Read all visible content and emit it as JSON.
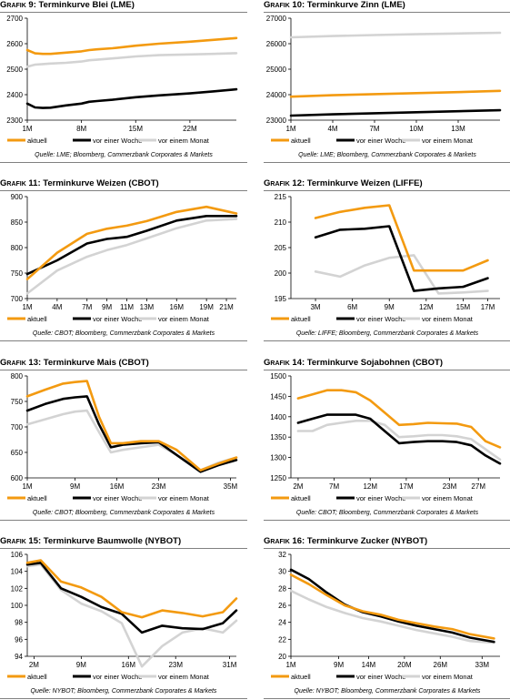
{
  "colors": {
    "aktuell": "#f39a10",
    "woche": "#000000",
    "monat": "#d3d3d3"
  },
  "legend": [
    "aktuell",
    "vor einer Woche",
    "vor einem Monat"
  ],
  "chart_data": [
    {
      "type": "line",
      "title_prefix": "Grafik 9:",
      "title": "Terminkurve Blei (LME)",
      "source": "Quelle: LME; Bloomberg, Commerzbank Corporates & Markets",
      "ylim": [
        2300,
        2700
      ],
      "yticks": [
        2300,
        2400,
        2500,
        2600,
        2700
      ],
      "xlim": [
        1,
        28
      ],
      "xticks": [
        1,
        8,
        15,
        22
      ],
      "xticklabels": [
        "1M",
        "8M",
        "15M",
        "22M"
      ],
      "series": [
        {
          "name": "aktuell",
          "x": [
            1,
            2,
            3,
            4,
            6,
            8,
            9,
            10,
            12,
            15,
            18,
            22,
            25,
            28
          ],
          "values": [
            2575,
            2562,
            2560,
            2560,
            2565,
            2570,
            2575,
            2578,
            2582,
            2592,
            2600,
            2608,
            2615,
            2622
          ]
        },
        {
          "name": "vor einer Woche",
          "x": [
            1,
            2,
            3,
            4,
            6,
            8,
            9,
            10,
            12,
            15,
            18,
            22,
            25,
            28
          ],
          "values": [
            2365,
            2350,
            2348,
            2349,
            2358,
            2365,
            2372,
            2375,
            2380,
            2390,
            2397,
            2405,
            2413,
            2421
          ]
        },
        {
          "name": "vor einem Monat",
          "x": [
            1,
            2,
            3,
            4,
            6,
            8,
            9,
            10,
            12,
            15,
            18,
            22,
            25,
            28
          ],
          "values": [
            2510,
            2518,
            2520,
            2522,
            2525,
            2530,
            2535,
            2537,
            2542,
            2550,
            2555,
            2558,
            2560,
            2563
          ]
        }
      ]
    },
    {
      "type": "line",
      "title_prefix": "Grafik 10:",
      "title": "Terminkurve Zinn (LME)",
      "source": "Quelle: LME; Bloomberg, Commerzbank Corporates & Markets",
      "ylim": [
        23000,
        27000
      ],
      "yticks": [
        23000,
        24000,
        25000,
        26000,
        27000
      ],
      "xlim": [
        1,
        16
      ],
      "xticks": [
        1,
        4,
        7,
        10,
        13
      ],
      "xticklabels": [
        "1M",
        "4M",
        "7M",
        "10M",
        "13M"
      ],
      "series": [
        {
          "name": "aktuell",
          "x": [
            1,
            4,
            7,
            10,
            13,
            16
          ],
          "values": [
            23920,
            23980,
            24020,
            24060,
            24100,
            24150
          ]
        },
        {
          "name": "vor einer Woche",
          "x": [
            1,
            4,
            7,
            10,
            13,
            16
          ],
          "values": [
            23180,
            23230,
            23270,
            23310,
            23350,
            23390
          ]
        },
        {
          "name": "vor einem Monat",
          "x": [
            1,
            4,
            7,
            10,
            13,
            16
          ],
          "values": [
            26250,
            26300,
            26340,
            26370,
            26400,
            26430
          ]
        }
      ]
    },
    {
      "type": "line",
      "title_prefix": "Grafik 11:",
      "title": "Terminkurve Weizen (CBOT)",
      "source": "Quelle: CBOT; Bloomberg, Commerzbank Corporates & Markets",
      "ylim": [
        700,
        900
      ],
      "yticks": [
        700,
        750,
        800,
        850,
        900
      ],
      "xlim": [
        1,
        22
      ],
      "xticks": [
        1,
        4,
        7,
        9,
        11,
        13,
        16,
        19,
        21
      ],
      "xticklabels": [
        "1M",
        "4M",
        "7M",
        "9M",
        "11M",
        "13M",
        "16M",
        "19M",
        "21M"
      ],
      "series": [
        {
          "name": "aktuell",
          "x": [
            1,
            4,
            7,
            9,
            11,
            13,
            16,
            19,
            22
          ],
          "values": [
            738,
            790,
            827,
            837,
            843,
            852,
            870,
            880,
            867
          ]
        },
        {
          "name": "vor einer Woche",
          "x": [
            1,
            4,
            7,
            9,
            11,
            13,
            16,
            19,
            22
          ],
          "values": [
            748,
            775,
            808,
            817,
            821,
            833,
            853,
            862,
            862
          ]
        },
        {
          "name": "vor einem Monat",
          "x": [
            1,
            4,
            7,
            9,
            11,
            13,
            16,
            19,
            22
          ],
          "values": [
            710,
            755,
            782,
            795,
            805,
            818,
            838,
            853,
            856
          ]
        }
      ]
    },
    {
      "type": "line",
      "title_prefix": "Grafik 12:",
      "title": "Terminkurve Weizen (LIFFE)",
      "source": "Quelle: LIFFE; Bloomberg, Commerzbank Corporates & Markets",
      "ylim": [
        195,
        215
      ],
      "yticks": [
        195,
        200,
        205,
        210,
        215
      ],
      "xlim": [
        1,
        18
      ],
      "xticks": [
        3,
        6,
        9,
        12,
        15,
        17
      ],
      "xticklabels": [
        "3M",
        "6M",
        "9M",
        "12M",
        "15M",
        "17M"
      ],
      "series": [
        {
          "name": "aktuell",
          "x": [
            3,
            5,
            7,
            9,
            11,
            13,
            15,
            17
          ],
          "values": [
            210.8,
            212.0,
            212.8,
            213.3,
            200.5,
            200.5,
            200.5,
            202.5
          ]
        },
        {
          "name": "vor einer Woche",
          "x": [
            3,
            5,
            7,
            9,
            11,
            13,
            15,
            17
          ],
          "values": [
            207.0,
            208.5,
            208.7,
            209.2,
            196.5,
            197.0,
            197.3,
            199.0
          ]
        },
        {
          "name": "vor einem Monat",
          "x": [
            3,
            5,
            7,
            9,
            11,
            13,
            15,
            17
          ],
          "values": [
            200.3,
            199.3,
            201.5,
            203.0,
            203.5,
            196.0,
            196.2,
            196.5
          ]
        }
      ]
    },
    {
      "type": "line",
      "title_prefix": "Grafik 13:",
      "title": "Terminkurve Mais (CBOT)",
      "source": "Quelle: CBOT; Bloomberg, Commerzbank Corporates & Markets",
      "ylim": [
        600,
        800
      ],
      "yticks": [
        600,
        650,
        700,
        750,
        800
      ],
      "xlim": [
        1,
        36
      ],
      "xticks": [
        1,
        9,
        16,
        23,
        35
      ],
      "xticklabels": [
        "1M",
        "9M",
        "16M",
        "23M",
        "35M"
      ],
      "series": [
        {
          "name": "aktuell",
          "x": [
            1,
            4,
            7,
            9,
            11,
            13,
            15,
            17,
            20,
            23,
            26,
            30,
            33,
            36
          ],
          "values": [
            760,
            773,
            785,
            788,
            790,
            720,
            668,
            668,
            672,
            672,
            655,
            615,
            628,
            640
          ]
        },
        {
          "name": "vor einer Woche",
          "x": [
            1,
            4,
            7,
            9,
            11,
            13,
            15,
            17,
            20,
            23,
            26,
            30,
            33,
            36
          ],
          "values": [
            732,
            745,
            755,
            758,
            760,
            705,
            660,
            665,
            668,
            670,
            645,
            612,
            625,
            635
          ]
        },
        {
          "name": "vor einem Monat",
          "x": [
            1,
            4,
            7,
            9,
            11,
            13,
            15,
            17,
            20,
            23,
            26,
            30,
            33,
            36
          ],
          "values": [
            705,
            715,
            725,
            730,
            732,
            690,
            650,
            655,
            660,
            665,
            645,
            615,
            630,
            640
          ]
        }
      ]
    },
    {
      "type": "line",
      "title_prefix": "Grafik 14:",
      "title": "Terminkurve Sojabohnen (CBOT)",
      "source": "Quelle: CBOT; Bloomberg, Commerzbank Corporates & Markets",
      "ylim": [
        1250,
        1500
      ],
      "yticks": [
        1250,
        1300,
        1350,
        1400,
        1450,
        1500
      ],
      "xlim": [
        1,
        30
      ],
      "xticks": [
        2,
        7,
        12,
        17,
        23,
        27
      ],
      "xticklabels": [
        "2M",
        "7M",
        "12M",
        "17M",
        "23M",
        "27M"
      ],
      "series": [
        {
          "name": "aktuell",
          "x": [
            2,
            4,
            6,
            8,
            10,
            12,
            14,
            16,
            18,
            20,
            22,
            24,
            26,
            28,
            30
          ],
          "values": [
            1445,
            1455,
            1465,
            1465,
            1460,
            1440,
            1410,
            1380,
            1382,
            1385,
            1384,
            1383,
            1375,
            1340,
            1325
          ]
        },
        {
          "name": "vor einer Woche",
          "x": [
            2,
            4,
            6,
            8,
            10,
            12,
            14,
            16,
            18,
            20,
            22,
            24,
            26,
            28,
            30
          ],
          "values": [
            1385,
            1395,
            1405,
            1405,
            1405,
            1395,
            1365,
            1335,
            1338,
            1340,
            1340,
            1338,
            1330,
            1305,
            1285
          ]
        },
        {
          "name": "vor einem Monat",
          "x": [
            2,
            4,
            6,
            8,
            10,
            12,
            14,
            16,
            18,
            20,
            22,
            24,
            26,
            28,
            30
          ],
          "values": [
            1365,
            1365,
            1380,
            1385,
            1390,
            1390,
            1380,
            1350,
            1352,
            1355,
            1355,
            1352,
            1345,
            1320,
            1295
          ]
        }
      ]
    },
    {
      "type": "line",
      "title_prefix": "Grafik 15:",
      "title": "Terminkurve Baumwolle (NYBOT)",
      "source": "Quelle: NYBOT; Bloomberg, Commerzbank Corporates & Markets",
      "ylim": [
        94,
        106
      ],
      "yticks": [
        94,
        96,
        98,
        100,
        102,
        104,
        106
      ],
      "xlim": [
        1,
        32
      ],
      "xticks": [
        2,
        9,
        16,
        23,
        31
      ],
      "xticklabels": [
        "2M",
        "9M",
        "16M",
        "23M",
        "31M"
      ],
      "series": [
        {
          "name": "aktuell",
          "x": [
            1,
            3,
            6,
            9,
            12,
            15,
            18,
            21,
            24,
            27,
            30,
            32
          ],
          "values": [
            105.0,
            105.3,
            102.8,
            102.1,
            101.0,
            99.2,
            98.6,
            99.4,
            99.1,
            98.7,
            99.2,
            100.8
          ]
        },
        {
          "name": "vor einer Woche",
          "x": [
            1,
            3,
            6,
            9,
            12,
            15,
            18,
            21,
            24,
            27,
            30,
            32
          ],
          "values": [
            104.8,
            105.0,
            102.0,
            101.0,
            99.8,
            99.0,
            96.8,
            97.6,
            97.3,
            97.2,
            97.9,
            99.4
          ]
        },
        {
          "name": "vor einem Monat",
          "x": [
            1,
            3,
            6,
            9,
            12,
            15,
            18,
            21,
            24,
            27,
            30,
            32
          ],
          "values": [
            104.6,
            104.8,
            101.8,
            100.2,
            99.3,
            97.9,
            92.8,
            95.2,
            96.8,
            97.3,
            96.8,
            98.2
          ]
        }
      ]
    },
    {
      "type": "line",
      "title_prefix": "Grafik 16:",
      "title": "Terminkurve Zucker (NYBOT)",
      "source": "Quelle: NYBOT; Bloomberg, Commerzbank Corporates & Markets",
      "ylim": [
        20,
        32
      ],
      "yticks": [
        20,
        22,
        24,
        26,
        28,
        30,
        32
      ],
      "xlim": [
        1,
        36
      ],
      "xticks": [
        1,
        9,
        14,
        20,
        26,
        33
      ],
      "xticklabels": [
        "1M",
        "9M",
        "14M",
        "20M",
        "26M",
        "33M"
      ],
      "series": [
        {
          "name": "aktuell",
          "x": [
            1,
            4,
            7,
            10,
            13,
            16,
            19,
            22,
            25,
            28,
            31,
            35
          ],
          "values": [
            29.6,
            28.5,
            27.2,
            26.0,
            25.3,
            24.9,
            24.3,
            23.9,
            23.5,
            23.2,
            22.6,
            22.1
          ]
        },
        {
          "name": "vor einer Woche",
          "x": [
            1,
            4,
            7,
            10,
            13,
            16,
            19,
            22,
            25,
            28,
            31,
            35
          ],
          "values": [
            30.2,
            29.1,
            27.5,
            26.1,
            25.2,
            24.7,
            24.1,
            23.6,
            23.2,
            22.8,
            22.2,
            21.7
          ]
        },
        {
          "name": "vor einem Monat",
          "x": [
            1,
            4,
            7,
            10,
            13,
            16,
            19,
            22,
            25,
            28,
            31,
            35
          ],
          "values": [
            27.7,
            26.7,
            25.8,
            25.1,
            24.5,
            24.1,
            23.6,
            23.1,
            22.7,
            22.3,
            21.8,
            21.6
          ]
        }
      ]
    }
  ]
}
